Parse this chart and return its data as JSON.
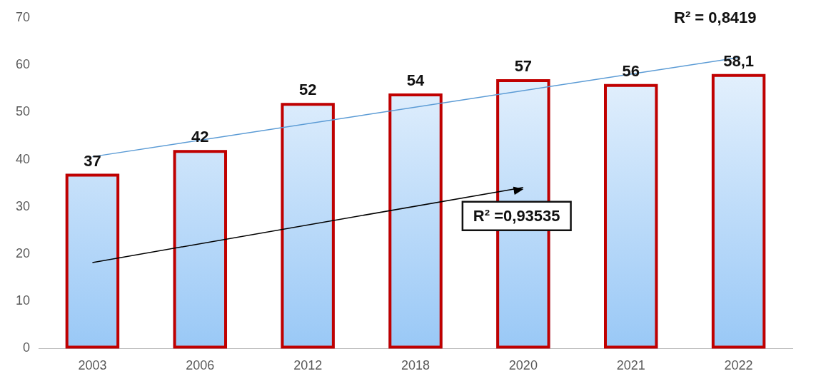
{
  "chart_data": {
    "type": "bar",
    "categories": [
      "2003",
      "2006",
      "2012",
      "2018",
      "2020",
      "2021",
      "2022"
    ],
    "series": [
      {
        "color": "#c00000",
        "values": [
          37,
          42,
          52,
          54,
          57,
          56,
          58.1
        ],
        "value_labels": [
          "37",
          "42",
          "52",
          "54",
          "57",
          "56",
          "58,1"
        ]
      },
      {
        "type": "line",
        "color": "#5b9bd5",
        "values": [
          40.6,
          null,
          null,
          null,
          null,
          null,
          61.6
        ]
      },
      {
        "type": "line",
        "color": "#000000",
        "values": [
          18.2,
          null,
          null,
          null,
          34.1,
          null,
          null
        ]
      }
    ],
    "ylim": [
      0,
      70
    ],
    "yticks": [
      0,
      10,
      20,
      30,
      40,
      50,
      60,
      70
    ],
    "grid": false,
    "legend": false,
    "line_style": "solid",
    "annotations": [
      "R² = 0,8419",
      "R² =0,93535"
    ]
  }
}
